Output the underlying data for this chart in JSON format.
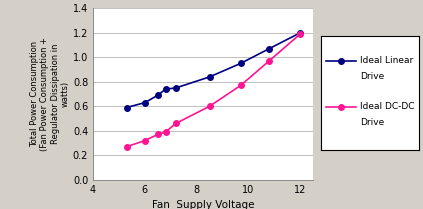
{
  "linear_x": [
    5.3,
    6.0,
    6.5,
    6.8,
    7.2,
    8.5,
    9.7,
    10.8,
    12.0
  ],
  "linear_y": [
    0.59,
    0.63,
    0.69,
    0.74,
    0.75,
    0.84,
    0.95,
    1.07,
    1.2
  ],
  "dcdc_x": [
    5.3,
    6.0,
    6.5,
    6.8,
    7.2,
    8.5,
    9.7,
    10.8,
    12.0
  ],
  "dcdc_y": [
    0.27,
    0.32,
    0.37,
    0.39,
    0.46,
    0.6,
    0.77,
    0.97,
    1.19
  ],
  "linear_color": "#000080",
  "dcdc_color": "#FF1493",
  "xlabel": "Fan  Supply Voltage",
  "ylabel": "Total Power Consumption\n(Fan Power Consumption +\nRegulator Dissipation in\nwatts)",
  "xlim": [
    4,
    12.5
  ],
  "ylim": [
    0,
    1.4
  ],
  "xticks": [
    4,
    6,
    8,
    10,
    12
  ],
  "yticks": [
    0,
    0.2,
    0.4,
    0.6,
    0.8,
    1.0,
    1.2,
    1.4
  ],
  "legend_linear": "Ideal Linear\nDrive",
  "legend_dcdc": "Ideal DC-DC\nDrive",
  "fig_bg": "#D4D0C8",
  "plot_bg": "#FFFFFF",
  "grid_color": "#C0C0C0"
}
